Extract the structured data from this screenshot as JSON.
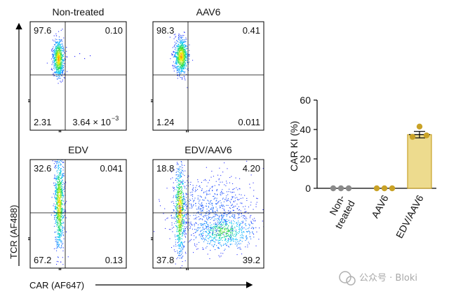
{
  "chart_data": [
    {
      "type": "scatter",
      "subtype": "flow-cytometry-quadrant-panels",
      "xlabel": "CAR (AF647)",
      "ylabel": "TCR (AF488)",
      "panels": [
        {
          "title": "Non-treated",
          "quadrants": {
            "top_left": "97.6",
            "top_right": "0.10",
            "bottom_left": "2.31",
            "bottom_right": "3.64 × 10",
            "bottom_right_exponent": "−3"
          }
        },
        {
          "title": "AAV6",
          "quadrants": {
            "top_left": "98.3",
            "top_right": "0.41",
            "bottom_left": "1.24",
            "bottom_right": "0.011"
          }
        },
        {
          "title": "EDV",
          "quadrants": {
            "top_left": "32.6",
            "top_right": "0.041",
            "bottom_left": "67.2",
            "bottom_right": "0.13"
          }
        },
        {
          "title": "EDV/AAV6",
          "quadrants": {
            "top_left": "18.8",
            "top_right": "4.20",
            "bottom_left": "37.8",
            "bottom_right": "39.2"
          }
        }
      ]
    },
    {
      "type": "bar",
      "ylabel": "CAR KI (%)",
      "ylim": [
        0,
        60
      ],
      "yticks": [
        0,
        20,
        40,
        60
      ],
      "categories": [
        "Non-\ntreated",
        "AAV6",
        "EDV/AAV6"
      ],
      "category_labels": [
        [
          "Non-",
          "treated"
        ],
        [
          "AAV6"
        ],
        [
          "EDV/AAV6"
        ]
      ],
      "values": [
        0,
        0,
        36.5
      ],
      "error": [
        0,
        0,
        2.2
      ],
      "points": [
        [
          0,
          0,
          0
        ],
        [
          0,
          0,
          0
        ],
        [
          42,
          35,
          36
        ]
      ],
      "colors": [
        "#8a8a8a",
        "#c9a227",
        "#c9a227"
      ],
      "bar_fill": "#eddb8e",
      "bar_edge": "#c9a227"
    }
  ],
  "watermark": "公众号 · Bloki"
}
